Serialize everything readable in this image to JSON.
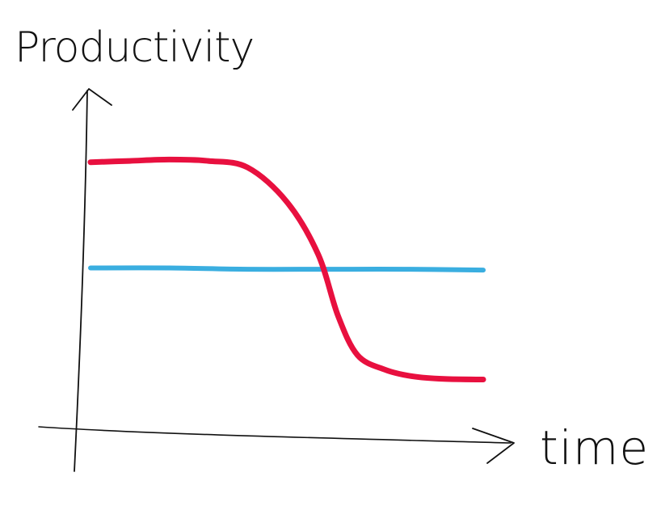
{
  "chart_data": {
    "type": "line",
    "title": "",
    "xlabel": "time",
    "ylabel": "Productivity",
    "grid": false,
    "legend": "none",
    "x_ticks_shown": false,
    "y_ticks_shown": false,
    "xlim": [
      0,
      10
    ],
    "ylim": [
      0,
      10
    ],
    "series": [
      {
        "color": "#e8103f",
        "x": [
          0,
          1,
          2,
          3,
          4,
          5,
          5.8,
          6.3,
          6.8,
          7.5,
          8.2,
          9,
          10
        ],
        "y": [
          9.0,
          9.05,
          9.1,
          9.05,
          8.8,
          7.5,
          5.5,
          3.2,
          1.7,
          1.15,
          0.9,
          0.8,
          0.78
        ]
      },
      {
        "color": "#3aaee0",
        "x": [
          0,
          2,
          4,
          6,
          8,
          10
        ],
        "y": [
          5.0,
          5.0,
          4.95,
          4.95,
          4.95,
          4.92
        ]
      }
    ]
  }
}
